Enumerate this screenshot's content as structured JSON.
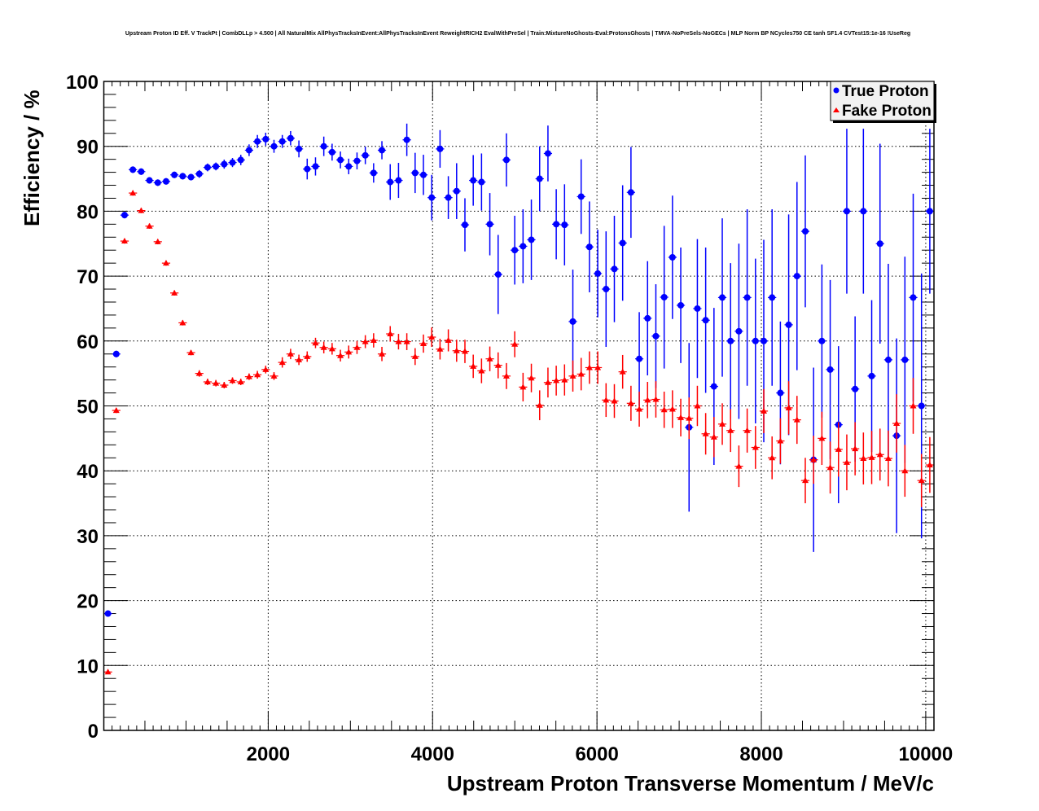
{
  "chart_data": {
    "type": "scatter",
    "title": "Upstream Proton ID Eff. V TrackPt | CombDLLp > 4.500 | All NaturalMix AllPhysTracksInEvent:AllPhysTracksInEvent ReweightRICH2 EvalWithPreSel | Train:MixtureNoGhosts-Eval:ProtonsGhosts | TMVA-NoPreSels-NoGECs | MLP Norm BP NCycles750 CE tanh SF1.4 CVTest15:1e-16 !UseReg",
    "xlabel": "Upstream Proton Transverse Momentum / MeV/c",
    "ylabel": "Efficiency / %",
    "xlim": [
      0,
      10100
    ],
    "ylim": [
      0,
      100
    ],
    "grid": true,
    "legend_position": "top-right",
    "xticks": [
      "2000",
      "4000",
      "6000",
      "8000",
      "10000"
    ],
    "xtick_values": [
      2000,
      4000,
      6000,
      8000,
      10000
    ],
    "yticks": [
      "0",
      "10",
      "20",
      "30",
      "40",
      "50",
      "60",
      "70",
      "80",
      "90",
      "100"
    ],
    "ytick_values": [
      0,
      10,
      20,
      30,
      40,
      50,
      60,
      70,
      80,
      90,
      100
    ],
    "bin_width": 101,
    "x_first": 50.5,
    "series": [
      {
        "name": "True Proton",
        "color": "#0000ff",
        "marker": "circle",
        "values": [
          18.0,
          58.0,
          79.4,
          86.4,
          86.1,
          84.75,
          84.4,
          84.6,
          85.6,
          85.4,
          85.25,
          85.75,
          86.75,
          86.9,
          87.25,
          87.5,
          87.9,
          89.4,
          90.75,
          91.1,
          90.0,
          90.75,
          91.25,
          89.6,
          86.5,
          86.9,
          90.0,
          89.1,
          87.9,
          86.9,
          87.75,
          88.6,
          85.9,
          89.4,
          84.5,
          84.75,
          91.0,
          85.9,
          85.6,
          82.1,
          89.6,
          82.1,
          83.1,
          77.9,
          84.75,
          84.5,
          78.0,
          70.25,
          87.9,
          74.0,
          74.6,
          75.6,
          85.0,
          88.9,
          78.0,
          77.9,
          63.0,
          82.25,
          74.5,
          70.4,
          68.0,
          71.1,
          75.1,
          82.9,
          57.25,
          63.5,
          60.75,
          66.75,
          72.9,
          65.5,
          46.7,
          65.0,
          63.2,
          53.0,
          66.7,
          60.0,
          61.5,
          66.7,
          60.0,
          60.0,
          66.7,
          52.0,
          62.5,
          70.0,
          76.9,
          41.7,
          60.0,
          55.6,
          47.1,
          80.0,
          52.6,
          80.0,
          54.6,
          75.0,
          57.1,
          45.4,
          57.1,
          66.7,
          50.0,
          80.0
        ],
        "errors": [
          0.4,
          0.5,
          0.5,
          0.5,
          0.5,
          0.5,
          0.5,
          0.5,
          0.5,
          0.5,
          0.5,
          0.6,
          0.6,
          0.6,
          0.7,
          0.7,
          0.8,
          0.9,
          1.0,
          1.0,
          1.0,
          1.0,
          1.1,
          1.3,
          1.6,
          1.4,
          1.5,
          1.3,
          1.3,
          1.2,
          1.3,
          1.35,
          1.5,
          1.4,
          2.75,
          2.7,
          2.5,
          3.1,
          3.1,
          3.5,
          2.9,
          3.3,
          4.3,
          4.1,
          3.9,
          4.4,
          4.8,
          6.1,
          4.1,
          5.3,
          5.7,
          6.2,
          5.0,
          4.3,
          5.4,
          6.25,
          8.0,
          5.75,
          7.0,
          6.75,
          8.9,
          8.2,
          8.9,
          7.0,
          7.2,
          8.8,
          8.0,
          11.0,
          9.5,
          8.9,
          13.0,
          10.7,
          11.2,
          12.1,
          12.2,
          12.0,
          13.5,
          13.6,
          12.7,
          15.6,
          13.6,
          11.0,
          17.0,
          14.5,
          11.7,
          14.2,
          11.8,
          13.8,
          12.1,
          12.7,
          11.2,
          12.7,
          11.7,
          15.4,
          14.8,
          15.0,
          15.9,
          16.0,
          20.4,
          12.7
        ]
      },
      {
        "name": "Fake Proton",
        "color": "#ff0000",
        "marker": "triangle",
        "values": [
          9.0,
          49.3,
          75.4,
          82.8,
          80.1,
          77.7,
          75.3,
          72.0,
          67.4,
          62.8,
          58.2,
          55.0,
          53.7,
          53.5,
          53.2,
          53.9,
          53.7,
          54.5,
          54.8,
          55.6,
          54.6,
          56.7,
          58.0,
          57.1,
          57.6,
          59.7,
          59.0,
          58.8,
          57.75,
          58.3,
          59.0,
          59.9,
          60.1,
          58.0,
          61.1,
          59.9,
          59.9,
          57.6,
          59.6,
          60.6,
          58.75,
          60.1,
          58.5,
          58.4,
          56.1,
          55.4,
          57.25,
          56.25,
          54.6,
          59.5,
          52.9,
          54.3,
          50.1,
          53.6,
          53.9,
          54.0,
          54.6,
          54.9,
          55.9,
          55.9,
          50.9,
          50.75,
          55.25,
          50.4,
          49.5,
          50.9,
          51.0,
          49.4,
          49.5,
          48.2,
          48.1,
          50.0,
          45.7,
          45.2,
          47.2,
          46.2,
          40.7,
          46.2,
          43.6,
          49.2,
          42.0,
          44.6,
          49.7,
          47.85,
          38.5,
          41.7,
          45.0,
          40.5,
          43.3,
          41.3,
          43.4,
          41.9,
          42.05,
          42.5,
          41.9,
          47.3,
          40.0,
          50.0,
          38.5,
          40.9
        ],
        "errors": [
          0.2,
          0.4,
          0.4,
          0.4,
          0.4,
          0.4,
          0.4,
          0.4,
          0.4,
          0.4,
          0.4,
          0.5,
          0.5,
          0.5,
          0.5,
          0.5,
          0.5,
          0.5,
          0.6,
          0.6,
          0.6,
          0.8,
          0.8,
          0.8,
          0.8,
          0.8,
          0.9,
          0.9,
          0.9,
          1.0,
          1.0,
          1.0,
          1.1,
          1.1,
          1.2,
          1.2,
          1.3,
          1.3,
          1.4,
          1.5,
          1.6,
          1.7,
          1.7,
          1.8,
          1.8,
          1.9,
          1.9,
          2.0,
          2.0,
          2.0,
          2.2,
          2.2,
          2.3,
          2.3,
          2.3,
          2.4,
          2.4,
          2.5,
          2.5,
          2.5,
          2.6,
          2.6,
          2.6,
          2.7,
          2.7,
          2.8,
          2.8,
          2.8,
          2.9,
          2.9,
          3.2,
          3.1,
          3.2,
          3.1,
          3.2,
          3.3,
          3.2,
          3.4,
          3.3,
          3.4,
          3.3,
          3.5,
          4.1,
          3.7,
          3.5,
          3.7,
          4.1,
          4.0,
          4.2,
          4.3,
          4.1,
          4.0,
          4.1,
          4.0,
          4.3,
          4.5,
          4.0,
          4.3,
          4.1,
          4.3
        ]
      }
    ]
  }
}
